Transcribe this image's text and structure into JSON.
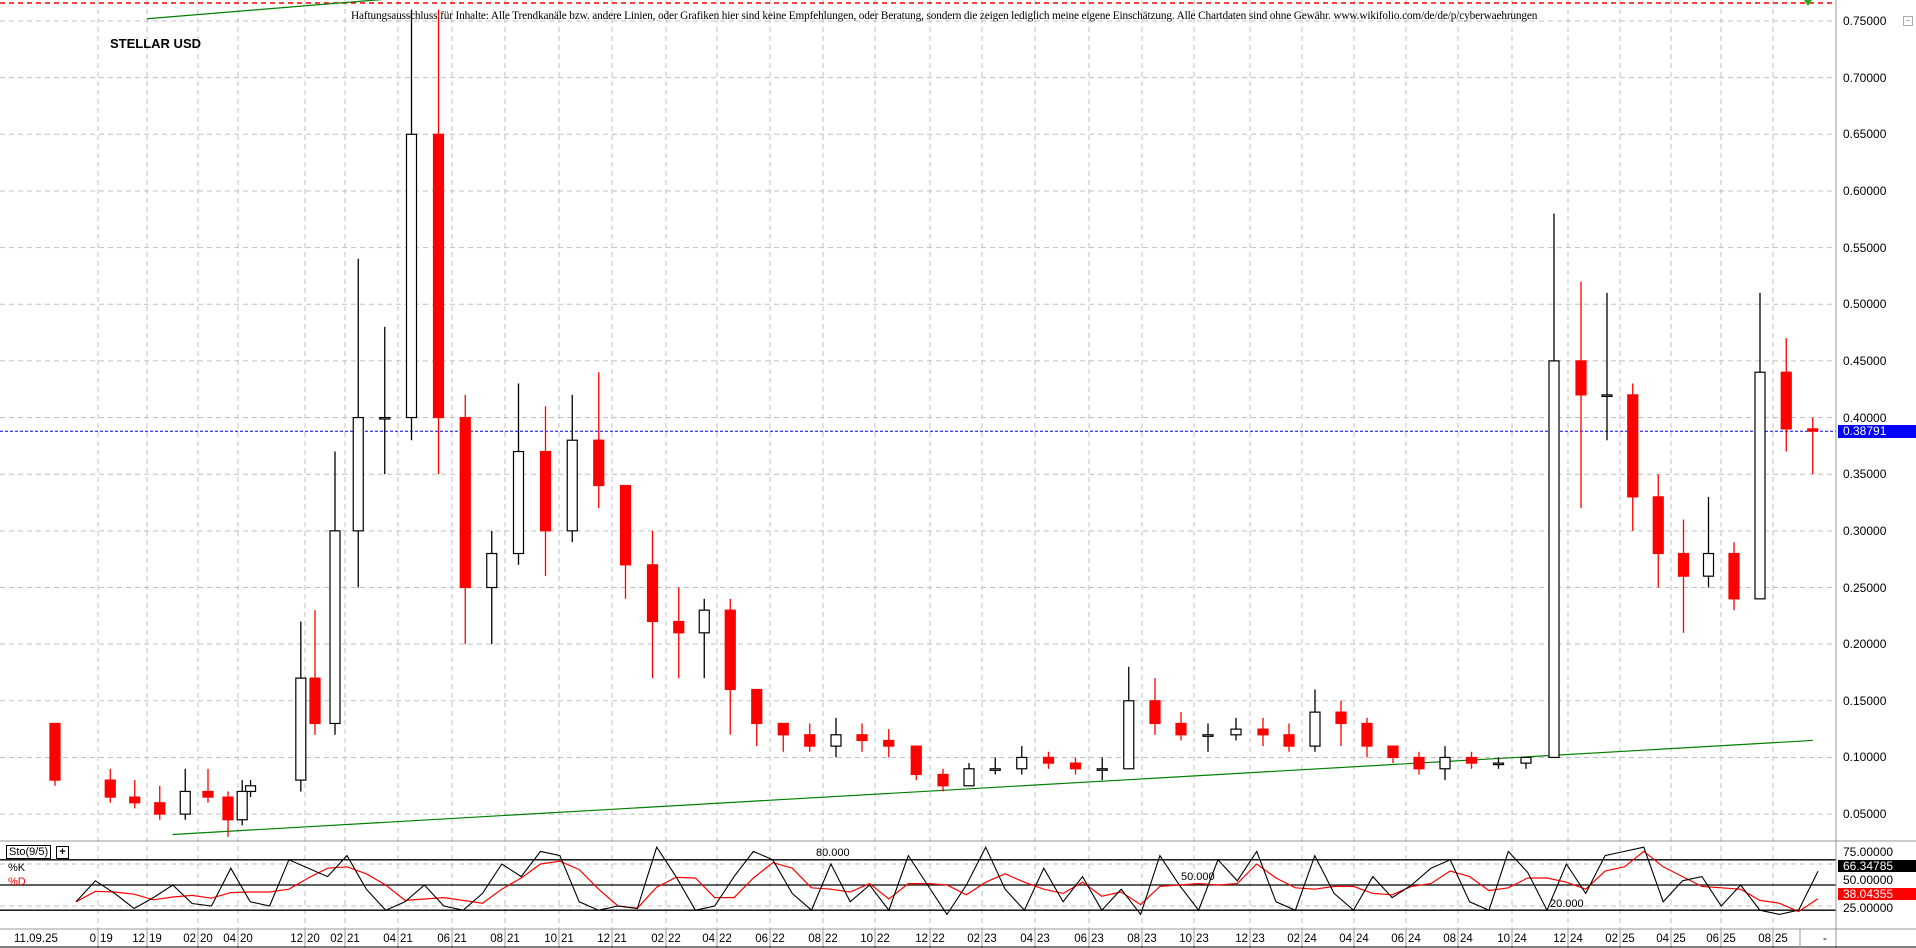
{
  "header": {
    "disclaimer": "Haftungsausschluss für Inhalte: Alle Trendkanäle bzw. andere Linien, oder Grafiken hier sind keine Empfehlungen, oder Beratung, sondern die zeigen lediglich meine eigene Einschätzung. Alle Chartdaten sind ohne Gewähr. www.wikifolio.com/de/de/p/cyberwaehrungen",
    "symbol_title": "STELLAR USD"
  },
  "colors": {
    "up": "#000000",
    "down": "#ff0000",
    "trendline": "#008000",
    "current_price": "#0000ff",
    "k_line": "#000000",
    "d_line": "#ff0000"
  },
  "chart_data": [
    {
      "type": "candlestick",
      "title": "STELLAR USD",
      "y_axis": {
        "position": "right",
        "ticks": [
          "0.75000",
          "0.70000",
          "0.65000",
          "0.60000",
          "0.55000",
          "0.50000",
          "0.45000",
          "0.40000",
          "0.35000",
          "0.30000",
          "0.25000",
          "0.20000",
          "0.15000",
          "0.10000",
          "0.05000"
        ],
        "ylim": [
          0.05,
          0.75
        ]
      },
      "current_price": "0.38791",
      "grid": true,
      "ohlc": [
        [
          "2019-09",
          0.13,
          0.13,
          0.075,
          0.08
        ],
        [
          "2019-10",
          0.08,
          0.09,
          0.06,
          0.065
        ],
        [
          "2019-11",
          0.065,
          0.08,
          0.055,
          0.06
        ],
        [
          "2019-12",
          0.06,
          0.075,
          0.045,
          0.05
        ],
        [
          "2020-01",
          0.05,
          0.09,
          0.045,
          0.07
        ],
        [
          "2020-02",
          0.07,
          0.09,
          0.06,
          0.065
        ],
        [
          "2020-03",
          0.065,
          0.07,
          0.03,
          0.045
        ],
        [
          "2020-04",
          0.045,
          0.08,
          0.04,
          0.07
        ],
        [
          "2020-05",
          0.07,
          0.08,
          0.065,
          0.075
        ],
        [
          "2020-11",
          0.08,
          0.22,
          0.07,
          0.17
        ],
        [
          "2020-12",
          0.17,
          0.23,
          0.12,
          0.13
        ],
        [
          "2021-01",
          0.13,
          0.37,
          0.12,
          0.3
        ],
        [
          "2021-02",
          0.3,
          0.54,
          0.25,
          0.4
        ],
        [
          "2021-03",
          0.4,
          0.48,
          0.35,
          0.4
        ],
        [
          "2021-04",
          0.4,
          0.76,
          0.38,
          0.65
        ],
        [
          "2021-05",
          0.65,
          0.76,
          0.35,
          0.4
        ],
        [
          "2021-06",
          0.4,
          0.42,
          0.2,
          0.25
        ],
        [
          "2021-07",
          0.25,
          0.3,
          0.2,
          0.28
        ],
        [
          "2021-08",
          0.28,
          0.43,
          0.27,
          0.37
        ],
        [
          "2021-09",
          0.37,
          0.41,
          0.26,
          0.3
        ],
        [
          "2021-10",
          0.3,
          0.42,
          0.29,
          0.38
        ],
        [
          "2021-11",
          0.38,
          0.44,
          0.32,
          0.34
        ],
        [
          "2021-12",
          0.34,
          0.34,
          0.24,
          0.27
        ],
        [
          "2022-01",
          0.27,
          0.3,
          0.17,
          0.22
        ],
        [
          "2022-02",
          0.22,
          0.25,
          0.17,
          0.21
        ],
        [
          "2022-03",
          0.21,
          0.24,
          0.17,
          0.23
        ],
        [
          "2022-04",
          0.23,
          0.24,
          0.12,
          0.16
        ],
        [
          "2022-05",
          0.16,
          0.16,
          0.11,
          0.13
        ],
        [
          "2022-06",
          0.13,
          0.13,
          0.105,
          0.12
        ],
        [
          "2022-07",
          0.12,
          0.13,
          0.105,
          0.11
        ],
        [
          "2022-08",
          0.11,
          0.135,
          0.1,
          0.12
        ],
        [
          "2022-09",
          0.12,
          0.13,
          0.105,
          0.115
        ],
        [
          "2022-10",
          0.115,
          0.125,
          0.1,
          0.11
        ],
        [
          "2022-11",
          0.11,
          0.11,
          0.08,
          0.085
        ],
        [
          "2022-12",
          0.085,
          0.09,
          0.07,
          0.075
        ],
        [
          "2023-01",
          0.075,
          0.095,
          0.075,
          0.09
        ],
        [
          "2023-02",
          0.09,
          0.1,
          0.085,
          0.09
        ],
        [
          "2023-03",
          0.09,
          0.11,
          0.085,
          0.1
        ],
        [
          "2023-04",
          0.1,
          0.105,
          0.09,
          0.095
        ],
        [
          "2023-05",
          0.095,
          0.1,
          0.085,
          0.09
        ],
        [
          "2023-06",
          0.09,
          0.1,
          0.08,
          0.09
        ],
        [
          "2023-07",
          0.09,
          0.18,
          0.09,
          0.15
        ],
        [
          "2023-08",
          0.15,
          0.17,
          0.12,
          0.13
        ],
        [
          "2023-09",
          0.13,
          0.14,
          0.115,
          0.12
        ],
        [
          "2023-10",
          0.12,
          0.13,
          0.105,
          0.12
        ],
        [
          "2023-11",
          0.12,
          0.135,
          0.115,
          0.125
        ],
        [
          "2023-12",
          0.125,
          0.135,
          0.11,
          0.12
        ],
        [
          "2024-01",
          0.12,
          0.13,
          0.105,
          0.11
        ],
        [
          "2024-02",
          0.11,
          0.16,
          0.105,
          0.14
        ],
        [
          "2024-03",
          0.14,
          0.15,
          0.11,
          0.13
        ],
        [
          "2024-04",
          0.13,
          0.135,
          0.1,
          0.11
        ],
        [
          "2024-05",
          0.11,
          0.11,
          0.095,
          0.1
        ],
        [
          "2024-06",
          0.1,
          0.105,
          0.085,
          0.09
        ],
        [
          "2024-07",
          0.09,
          0.11,
          0.08,
          0.1
        ],
        [
          "2024-08",
          0.1,
          0.105,
          0.09,
          0.095
        ],
        [
          "2024-09",
          0.095,
          0.1,
          0.09,
          0.095
        ],
        [
          "2024-10",
          0.095,
          0.1,
          0.09,
          0.1
        ],
        [
          "2024-11",
          0.1,
          0.58,
          0.1,
          0.45
        ],
        [
          "2024-12",
          0.45,
          0.52,
          0.32,
          0.42
        ],
        [
          "2025-01",
          0.42,
          0.51,
          0.38,
          0.42
        ],
        [
          "2025-02",
          0.42,
          0.43,
          0.3,
          0.33
        ],
        [
          "2025-03",
          0.33,
          0.35,
          0.25,
          0.28
        ],
        [
          "2025-04",
          0.28,
          0.31,
          0.21,
          0.26
        ],
        [
          "2025-05",
          0.26,
          0.33,
          0.25,
          0.28
        ],
        [
          "2025-06",
          0.28,
          0.29,
          0.23,
          0.24
        ],
        [
          "2025-07",
          0.24,
          0.51,
          0.24,
          0.44
        ],
        [
          "2025-08",
          0.44,
          0.47,
          0.37,
          0.39
        ],
        [
          "2025-09",
          0.39,
          0.4,
          0.35,
          0.388
        ]
      ],
      "trendlines": [
        {
          "from": [
            "2020-01",
            0.032
          ],
          "to": [
            "2025-09",
            0.115
          ]
        },
        {
          "from": [
            "2019-12",
            0.752
          ],
          "to": [
            "2021-06",
            0.775
          ]
        }
      ],
      "x_axis": {
        "start_label": "11.09.25",
        "ticks": [
          {
            "m": "0",
            "y": "19",
            "date": "2019-10"
          },
          {
            "m": "12",
            "y": "19",
            "date": "2019-12"
          },
          {
            "m": "02",
            "y": "20",
            "date": "2020-02"
          },
          {
            "m": "04",
            "y": "20",
            "date": "2020-04"
          },
          {
            "m": "12",
            "y": "20",
            "date": "2020-12"
          },
          {
            "m": "02",
            "y": "21",
            "date": "2021-02"
          },
          {
            "m": "04",
            "y": "21",
            "date": "2021-04"
          },
          {
            "m": "06",
            "y": "21",
            "date": "2021-06"
          },
          {
            "m": "08",
            "y": "21",
            "date": "2021-08"
          },
          {
            "m": "10",
            "y": "21",
            "date": "2021-10"
          },
          {
            "m": "12",
            "y": "21",
            "date": "2021-12"
          },
          {
            "m": "02",
            "y": "22",
            "date": "2022-02"
          },
          {
            "m": "04",
            "y": "22",
            "date": "2022-04"
          },
          {
            "m": "06",
            "y": "22",
            "date": "2022-06"
          },
          {
            "m": "08",
            "y": "22",
            "date": "2022-08"
          },
          {
            "m": "10",
            "y": "22",
            "date": "2022-10"
          },
          {
            "m": "12",
            "y": "22",
            "date": "2022-12"
          },
          {
            "m": "02",
            "y": "23",
            "date": "2023-02"
          },
          {
            "m": "04",
            "y": "23",
            "date": "2023-04"
          },
          {
            "m": "06",
            "y": "23",
            "date": "2023-06"
          },
          {
            "m": "08",
            "y": "23",
            "date": "2023-08"
          },
          {
            "m": "10",
            "y": "23",
            "date": "2023-10"
          },
          {
            "m": "12",
            "y": "23",
            "date": "2023-12"
          },
          {
            "m": "02",
            "y": "24",
            "date": "2024-02"
          },
          {
            "m": "04",
            "y": "24",
            "date": "2024-04"
          },
          {
            "m": "06",
            "y": "24",
            "date": "2024-06"
          },
          {
            "m": "08",
            "y": "24",
            "date": "2024-08"
          },
          {
            "m": "10",
            "y": "24",
            "date": "2024-10"
          },
          {
            "m": "12",
            "y": "24",
            "date": "2024-12"
          },
          {
            "m": "02",
            "y": "25",
            "date": "2025-02"
          },
          {
            "m": "04",
            "y": "25",
            "date": "2025-04"
          },
          {
            "m": "06",
            "y": "25",
            "date": "2025-06"
          },
          {
            "m": "08",
            "y": "25",
            "date": "2025-08"
          }
        ],
        "end_label": "-"
      }
    },
    {
      "type": "line",
      "title": "Sto(9/5)",
      "ylim": [
        0,
        100
      ],
      "levels": [
        "80.000",
        "50.000",
        "20.000"
      ],
      "y_axis_ticks": [
        "75.00000",
        "50.00000",
        "25.00000"
      ],
      "series": [
        {
          "name": "%K",
          "last": "66.34785",
          "values": [
            30,
            55,
            40,
            22,
            35,
            50,
            28,
            25,
            70,
            30,
            25,
            80,
            70,
            60,
            85,
            45,
            20,
            30,
            50,
            25,
            20,
            40,
            75,
            60,
            90,
            85,
            30,
            20,
            25,
            22,
            95,
            60,
            20,
            25,
            60,
            90,
            80,
            40,
            20,
            75,
            30,
            50,
            20,
            85,
            50,
            15,
            50,
            95,
            45,
            20,
            70,
            30,
            60,
            20,
            45,
            15,
            85,
            50,
            20,
            80,
            55,
            90,
            30,
            20,
            85,
            40,
            20,
            60,
            35,
            50,
            70,
            80,
            30,
            20,
            90,
            65,
            20,
            75,
            40,
            85,
            90,
            95,
            30,
            55,
            60,
            25,
            50,
            20,
            15,
            20,
            66.35
          ]
        },
        {
          "name": "%D",
          "last": "38.04355"
        }
      ]
    }
  ]
}
